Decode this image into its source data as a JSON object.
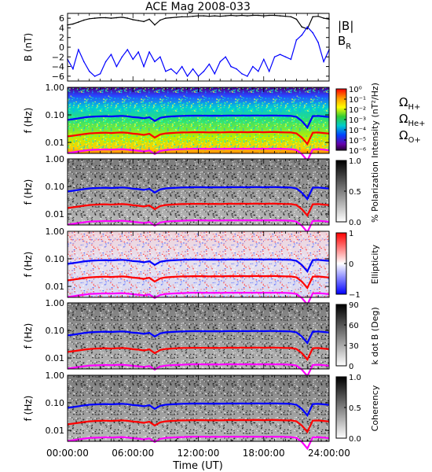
{
  "title": "ACE Mag 2008-033",
  "xlabel": "Time (UT)",
  "time_ticks": [
    "00:00:00",
    "06:00:00",
    "12:00:00",
    "18:00:00",
    "24:00:00"
  ],
  "chart_data": [
    {
      "type": "line",
      "panel": "magnetic-field",
      "ylabel": "B (nT)",
      "xlim_hours": [
        0,
        24
      ],
      "ylim": [
        -7,
        7
      ],
      "yticks": [
        "6",
        "4",
        "2",
        "0",
        "−2",
        "−4",
        "−6"
      ],
      "series": [
        {
          "name": "|B|",
          "color": "#000000",
          "x_hours": [
            0,
            0.5,
            1,
            1.5,
            2,
            2.5,
            3,
            3.5,
            4,
            4.5,
            5,
            5.5,
            6,
            6.5,
            7,
            7.5,
            8,
            8.5,
            9,
            9.5,
            10,
            10.5,
            11,
            11.5,
            12,
            12.5,
            13,
            13.5,
            14,
            14.5,
            15,
            15.5,
            16,
            16.5,
            17,
            17.5,
            18,
            18.5,
            19,
            19.5,
            20,
            20.5,
            21,
            21.5,
            22,
            22.5,
            23,
            23.5,
            24
          ],
          "values": [
            4.6,
            4.8,
            5.2,
            5.6,
            5.9,
            6.0,
            6.1,
            6.1,
            6.0,
            6.1,
            6.2,
            6.0,
            5.7,
            5.5,
            5.3,
            5.8,
            4.6,
            5.6,
            6.0,
            6.1,
            6.2,
            6.3,
            6.3,
            6.4,
            6.5,
            6.5,
            6.4,
            6.5,
            6.4,
            6.5,
            6.6,
            6.5,
            6.6,
            6.5,
            6.6,
            6.6,
            6.5,
            6.6,
            6.6,
            6.5,
            6.4,
            6.3,
            5.8,
            4.2,
            3.8,
            6.3,
            6.4,
            6.0,
            5.8
          ]
        },
        {
          "name": "B_R",
          "color": "#0000ff",
          "x_hours": [
            0,
            0.5,
            1,
            1.5,
            2,
            2.5,
            3,
            3.5,
            4,
            4.5,
            5,
            5.5,
            6,
            6.5,
            7,
            7.5,
            8,
            8.5,
            9,
            9.5,
            10,
            10.5,
            11,
            11.5,
            12,
            12.5,
            13,
            13.5,
            14,
            14.5,
            15,
            15.5,
            16,
            16.5,
            17,
            17.5,
            18,
            18.5,
            19,
            19.5,
            20,
            20.5,
            21,
            21.5,
            22,
            22.5,
            23,
            23.5,
            24
          ],
          "values": [
            -2.5,
            -4.5,
            -0.5,
            -3.0,
            -5.0,
            -6.0,
            -5.5,
            -3.0,
            -1.5,
            -4.0,
            -2.0,
            -0.5,
            -2.5,
            -1.0,
            -4.0,
            -1.0,
            -3.0,
            -2.0,
            -5.0,
            -4.5,
            -5.5,
            -4.0,
            -6.0,
            -4.5,
            -6.0,
            -5.0,
            -3.5,
            -5.5,
            -3.0,
            -2.0,
            -4.0,
            -4.5,
            -5.5,
            -6.0,
            -4.0,
            -5.0,
            -2.5,
            -5.0,
            -2.0,
            -1.5,
            -2.0,
            -2.5,
            1.5,
            2.5,
            4.2,
            3.0,
            1.0,
            -3.0,
            -0.5
          ]
        }
      ]
    },
    {
      "type": "heatmap",
      "panel": "intensity",
      "ylabel": "f (Hz)",
      "yscale": "log",
      "ylim": [
        0.004,
        1.0
      ],
      "yticks": [
        "1.00",
        "0.10",
        "0.01"
      ],
      "colorbar_label": "Intensity (nT²/Hz)",
      "colorbar_ticks": [
        "10⁰",
        "10⁻¹",
        "10⁻²",
        "10⁻³",
        "10⁻⁴",
        "10⁻⁵",
        "10⁻⁶"
      ],
      "colormap": "rainbow"
    },
    {
      "type": "heatmap",
      "panel": "polarization",
      "ylabel": "f (Hz)",
      "yscale": "log",
      "ylim": [
        0.004,
        1.0
      ],
      "yticks": [
        "1.00",
        "0.10",
        "0.01"
      ],
      "colorbar_label": "% Polarization",
      "colorbar_ticks": [
        "1.0",
        "0.5",
        "0.0"
      ],
      "colormap": "gray"
    },
    {
      "type": "heatmap",
      "panel": "ellipticity",
      "ylabel": "f (Hz)",
      "yscale": "log",
      "ylim": [
        0.004,
        1.0
      ],
      "yticks": [
        "1.00",
        "0.10",
        "0.01"
      ],
      "colorbar_label": "Ellipticity",
      "colorbar_ticks": [
        "1",
        "0",
        "−1"
      ],
      "colormap": "blue-white-red"
    },
    {
      "type": "heatmap",
      "panel": "k-dot-b",
      "ylabel": "f (Hz)",
      "yscale": "log",
      "ylim": [
        0.004,
        1.0
      ],
      "yticks": [
        "1.00",
        "0.10",
        "0.01"
      ],
      "colorbar_label": "k dot B (Deg)",
      "colorbar_ticks": [
        "90",
        "60",
        "30",
        "0"
      ],
      "colormap": "gray"
    },
    {
      "type": "heatmap",
      "panel": "coherency",
      "ylabel": "f (Hz)",
      "yscale": "log",
      "ylim": [
        0.004,
        1.0
      ],
      "yticks": [
        "1.00",
        "0.10",
        "0.01"
      ],
      "colorbar_label": "Coherency",
      "colorbar_ticks": [
        "1.0",
        "0.5",
        "0.0"
      ],
      "colormap": "gray"
    }
  ],
  "gyrofrequency_lines": {
    "x_hours": [
      0,
      0.5,
      1,
      1.5,
      2,
      2.5,
      3,
      3.5,
      4,
      4.5,
      5,
      5.5,
      6,
      6.5,
      7,
      7.5,
      8,
      8.5,
      9,
      9.5,
      10,
      10.5,
      11,
      11.5,
      12,
      12.5,
      13,
      13.5,
      14,
      14.5,
      15,
      15.5,
      16,
      16.5,
      17,
      17.5,
      18,
      18.5,
      19,
      19.5,
      20,
      20.5,
      21,
      21.5,
      22,
      22.5,
      23,
      23.5,
      24
    ],
    "series": [
      {
        "name": "Ω_H+",
        "label_main": "Ω",
        "label_sub": "H+",
        "color": "#0000ff",
        "values": [
          0.066,
          0.07,
          0.075,
          0.08,
          0.085,
          0.087,
          0.089,
          0.09,
          0.088,
          0.09,
          0.092,
          0.089,
          0.083,
          0.08,
          0.075,
          0.082,
          0.06,
          0.078,
          0.085,
          0.088,
          0.09,
          0.092,
          0.093,
          0.094,
          0.094,
          0.094,
          0.093,
          0.094,
          0.093,
          0.094,
          0.095,
          0.094,
          0.095,
          0.094,
          0.095,
          0.095,
          0.094,
          0.095,
          0.095,
          0.094,
          0.093,
          0.092,
          0.085,
          0.06,
          0.035,
          0.09,
          0.092,
          0.088,
          0.084
        ]
      },
      {
        "name": "Ω_He+",
        "label_main": "Ω",
        "label_sub": "He+",
        "color": "#ff0000",
        "values": [
          0.0165,
          0.0175,
          0.0188,
          0.02,
          0.0212,
          0.0218,
          0.0222,
          0.0225,
          0.022,
          0.0225,
          0.023,
          0.0222,
          0.0208,
          0.02,
          0.0188,
          0.0205,
          0.015,
          0.0195,
          0.0212,
          0.022,
          0.0225,
          0.023,
          0.0232,
          0.0235,
          0.0235,
          0.0235,
          0.0232,
          0.0235,
          0.0232,
          0.0235,
          0.0238,
          0.0235,
          0.0238,
          0.0235,
          0.0238,
          0.0238,
          0.0235,
          0.0238,
          0.0238,
          0.0235,
          0.0232,
          0.023,
          0.0212,
          0.015,
          0.0088,
          0.0225,
          0.023,
          0.022,
          0.021
        ]
      },
      {
        "name": "Ω_O+",
        "label_main": "Ω",
        "label_sub": "O+",
        "color": "#ff00ff",
        "values": [
          0.0041,
          0.0044,
          0.0047,
          0.005,
          0.0053,
          0.0054,
          0.0055,
          0.0056,
          0.0055,
          0.0056,
          0.0057,
          0.0055,
          0.0052,
          0.005,
          0.0047,
          0.0051,
          0.0038,
          0.0049,
          0.0053,
          0.0055,
          0.0056,
          0.0057,
          0.0058,
          0.0059,
          0.0059,
          0.0059,
          0.0058,
          0.0059,
          0.0058,
          0.0059,
          0.0059,
          0.0059,
          0.0059,
          0.0059,
          0.0059,
          0.0059,
          0.0059,
          0.0059,
          0.0059,
          0.0059,
          0.0058,
          0.0057,
          0.0053,
          0.0038,
          0.0022,
          0.0056,
          0.0057,
          0.0055,
          0.0052
        ]
      }
    ]
  },
  "legend_top": [
    {
      "text": "|B|",
      "sub": "",
      "color": "#000000"
    },
    {
      "text": "B",
      "sub": "R",
      "color": "#0000ff"
    }
  ]
}
